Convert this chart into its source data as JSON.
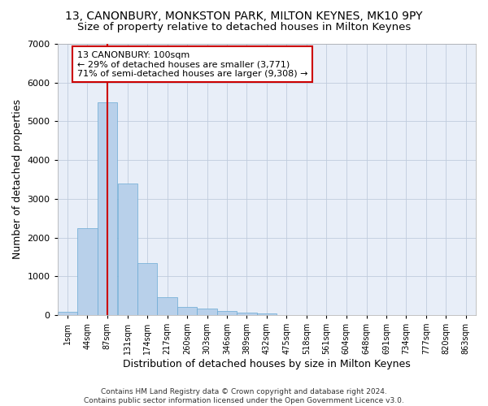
{
  "title": "13, CANONBURY, MONKSTON PARK, MILTON KEYNES, MK10 9PY",
  "subtitle": "Size of property relative to detached houses in Milton Keynes",
  "xlabel": "Distribution of detached houses by size in Milton Keynes",
  "ylabel": "Number of detached properties",
  "bin_centers": [
    1,
    44,
    87,
    131,
    174,
    217,
    260,
    303,
    346,
    389,
    432,
    475,
    518,
    561,
    604,
    648,
    691,
    734,
    777,
    820,
    863
  ],
  "bin_width": 43,
  "bar_heights": [
    75,
    2250,
    5500,
    3400,
    1350,
    450,
    200,
    175,
    100,
    60,
    50,
    5,
    2,
    1,
    1,
    1,
    0,
    0,
    0,
    0,
    0
  ],
  "bar_color": "#b8d0ea",
  "bar_edge_color": "#6aaad4",
  "background_color": "#e8eef8",
  "vline_x": 87,
  "vline_color": "#cc0000",
  "annotation_text": "13 CANONBURY: 100sqm\n← 29% of detached houses are smaller (3,771)\n71% of semi-detached houses are larger (9,308) →",
  "annotation_box_color": "#ffffff",
  "annotation_box_edge": "#cc0000",
  "ylim": [
    0,
    7000
  ],
  "yticks": [
    0,
    1000,
    2000,
    3000,
    4000,
    5000,
    6000,
    7000
  ],
  "tick_labels": [
    "1sqm",
    "44sqm",
    "87sqm",
    "131sqm",
    "174sqm",
    "217sqm",
    "260sqm",
    "303sqm",
    "346sqm",
    "389sqm",
    "432sqm",
    "475sqm",
    "518sqm",
    "561sqm",
    "604sqm",
    "648sqm",
    "691sqm",
    "734sqm",
    "777sqm",
    "820sqm",
    "863sqm"
  ],
  "footer": "Contains HM Land Registry data © Crown copyright and database right 2024.\nContains public sector information licensed under the Open Government Licence v3.0.",
  "title_fontsize": 10,
  "subtitle_fontsize": 9.5,
  "axis_label_fontsize": 9,
  "tick_fontsize": 7,
  "footer_fontsize": 6.5
}
